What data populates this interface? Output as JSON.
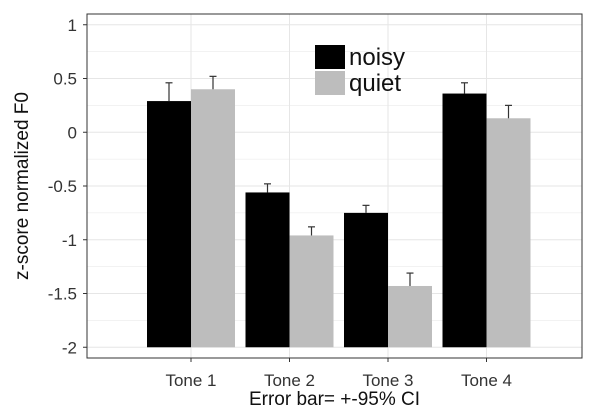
{
  "chart_data": {
    "type": "bar",
    "categories": [
      "Tone 1",
      "Tone 2",
      "Tone 3",
      "Tone 4"
    ],
    "series": [
      {
        "name": "noisy",
        "values": [
          0.29,
          -0.56,
          -0.75,
          0.36
        ],
        "ci": [
          0.17,
          0.08,
          0.07,
          0.1
        ]
      },
      {
        "name": "quiet",
        "values": [
          0.4,
          -0.96,
          -1.43,
          0.13
        ],
        "ci": [
          0.12,
          0.08,
          0.12,
          0.12
        ]
      }
    ],
    "title": "",
    "xlabel": "Error bar= +-95% CI",
    "ylabel": "z-score normalized F0",
    "ylim": [
      -2.1,
      1.1
    ],
    "yticks": [
      1,
      0.5,
      0,
      -0.5,
      -1,
      -1.5,
      -2
    ],
    "ytick_labels": [
      "1",
      "0.5",
      "0",
      "-0.5",
      "-1",
      "-1.5",
      "-2"
    ],
    "bar_baseline": -2,
    "grid": true,
    "legend_position": "top-center",
    "colors": {
      "noisy": "#000000",
      "quiet": "#bdbdbd",
      "grid": "#e6e6e6",
      "frame": "#333333",
      "errorbar": "#333333"
    }
  }
}
